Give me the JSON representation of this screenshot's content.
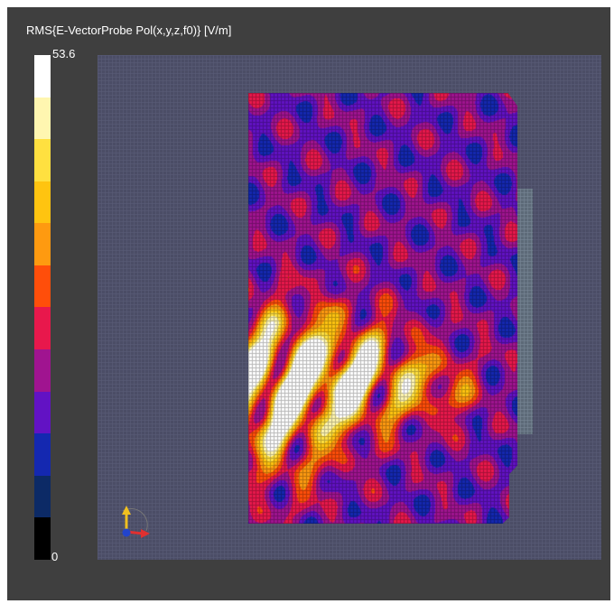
{
  "colorbar": {
    "title": "RMS{E-VectorProbe Pol(x,y,z,f0)} [V/m]",
    "max_label": "53.6",
    "min_label": "0",
    "colors": [
      "#ffffff",
      "#fff6b0",
      "#ffe040",
      "#ffc410",
      "#fe9a10",
      "#ff4e0a",
      "#e8184c",
      "#a01490",
      "#6212c4",
      "#1428b0",
      "#0c2a66",
      "#000000"
    ]
  },
  "domain": {
    "background": "#4b4d66",
    "probe_strip_color": "#5d6a78"
  },
  "axes_triad": {
    "icon": "orientation-axes-icon",
    "x_color": "#e03030",
    "y_color": "#f0c020",
    "z_color": "#2244cc"
  }
}
